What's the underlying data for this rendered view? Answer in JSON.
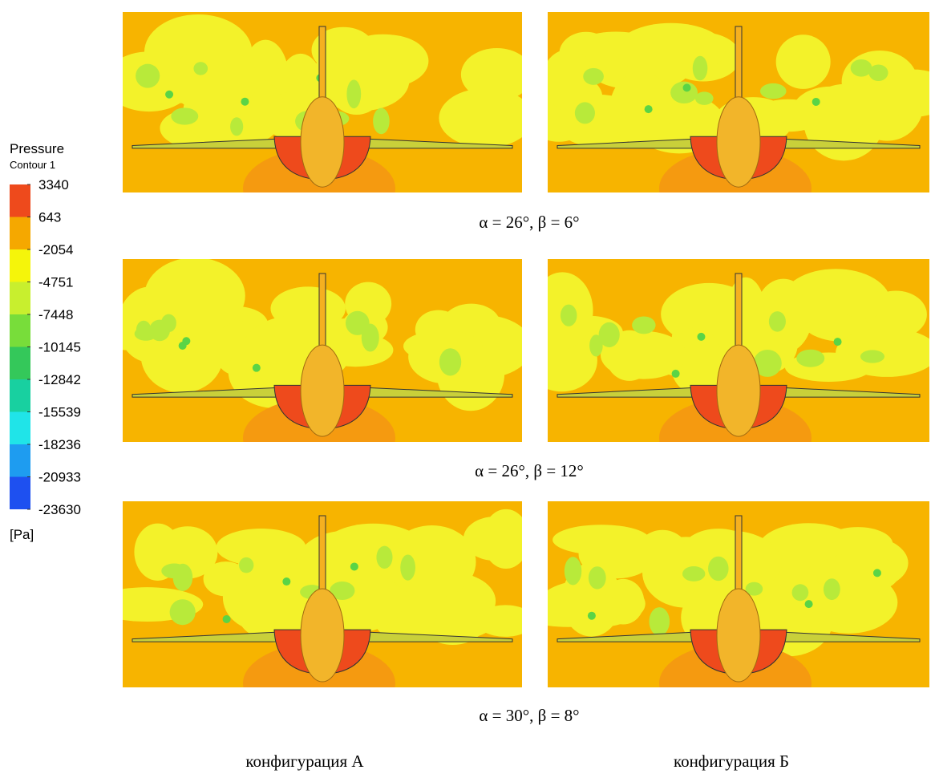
{
  "legend": {
    "title": "Pressure",
    "subtitle": "Contour 1",
    "unit": "[Pa]",
    "levels": [
      3340,
      643,
      -2054,
      -4751,
      -7448,
      -10145,
      -12842,
      -15539,
      -18236,
      -20933,
      -23630
    ],
    "colors": [
      "#ee4a1c",
      "#f5a800",
      "#f5f50a",
      "#c8ef2e",
      "#78dd3a",
      "#34c85a",
      "#18d0a0",
      "#20e4e8",
      "#1e9cf0",
      "#1e50f0"
    ]
  },
  "captions": [
    "α = 26°,  β = 6°",
    "α = 26°,  β = 12°",
    "α = 30°,  β = 8°"
  ],
  "columns": [
    "конфигурация А",
    "конфигурация Б"
  ]
}
